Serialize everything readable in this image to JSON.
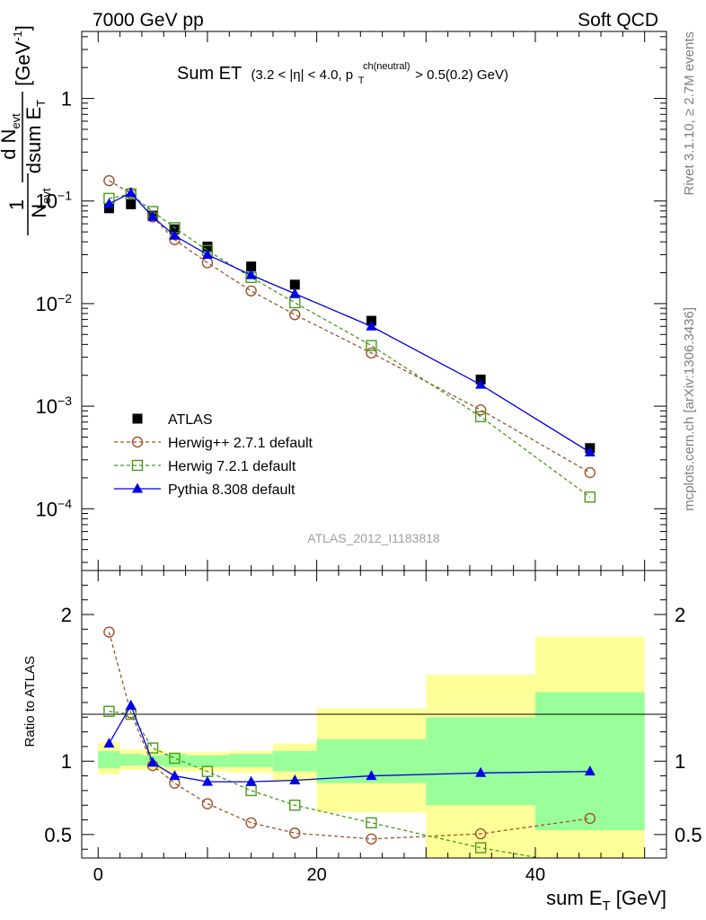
{
  "header": {
    "left": "7000 GeV pp",
    "right": "Soft QCD"
  },
  "side_text": {
    "top": "Rivet 3.1.10, ≥ 2.7M events",
    "bottom": "mcplots.cern.ch [arXiv:1306.3436]"
  },
  "watermark": "ATLAS_2012_I1183818",
  "chart_data": {
    "type": "line",
    "title_main": "Sum ET",
    "title_detail_a": "(3.2 < |η| < 4.0, p",
    "title_sup": "ch(neutral)",
    "title_sub": "T",
    "title_detail_b": " > 0.5(0.2) GeV)",
    "ylabel_main": {
      "frac_one": "1",
      "frac_n": "N",
      "frac_n_sub": "evt",
      "d": "d N",
      "d_sub": "evt",
      "dsum": "dsum E",
      "dsum_sub": "T",
      "unit": "[GeV",
      "unit_sup": "-1",
      "unit_close": "]"
    },
    "ylabel_ratio": "Ratio to ATLAS",
    "xlabel": {
      "text": "sum E",
      "sub": "T",
      "unit": " [GeV]"
    },
    "xlim": [
      -1.5,
      52
    ],
    "ylim_main": [
      2.5e-05,
      4.5
    ],
    "ylim_ratio": [
      0.34,
      2.3
    ],
    "y_scale_main": "log",
    "main_yticks": [
      {
        "v": 1,
        "base": "1",
        "exp": ""
      },
      {
        "v": 0.1,
        "base": "10",
        "exp": "−1"
      },
      {
        "v": 0.01,
        "base": "10",
        "exp": "−2"
      },
      {
        "v": 0.001,
        "base": "10",
        "exp": "−3"
      },
      {
        "v": 0.0001,
        "base": "10",
        "exp": "−4"
      }
    ],
    "ratio_yticks": [
      {
        "v": 0.5,
        "label": "0.5"
      },
      {
        "v": 1,
        "label": "1"
      },
      {
        "v": 2,
        "label": "2"
      }
    ],
    "xticks": [
      {
        "v": 0,
        "label": "0"
      },
      {
        "v": 20,
        "label": "20"
      },
      {
        "v": 40,
        "label": "40"
      }
    ],
    "x": [
      1,
      3,
      5,
      7,
      10,
      14,
      18,
      25,
      35,
      45
    ],
    "bins": [
      [
        0,
        2
      ],
      [
        2,
        4
      ],
      [
        4,
        6
      ],
      [
        6,
        8
      ],
      [
        8,
        12
      ],
      [
        12,
        16
      ],
      [
        16,
        20
      ],
      [
        20,
        30
      ],
      [
        30,
        40
      ],
      [
        40,
        50
      ]
    ],
    "bands": {
      "green_lo": [
        0.95,
        0.97,
        0.97,
        0.96,
        0.96,
        0.96,
        0.93,
        0.85,
        0.7,
        0.53
      ],
      "green_hi": [
        1.07,
        1.05,
        1.04,
        1.05,
        1.04,
        1.05,
        1.07,
        1.15,
        1.3,
        1.47
      ],
      "yellow_lo": [
        0.91,
        0.94,
        0.94,
        0.93,
        0.93,
        0.92,
        0.86,
        0.65,
        0.34,
        0.34
      ],
      "yellow_hi": [
        1.13,
        1.08,
        1.08,
        1.06,
        1.06,
        1.07,
        1.12,
        1.36,
        1.59,
        1.85
      ]
    },
    "legend_position": "lower-left",
    "series": [
      {
        "name": "ATLAS",
        "marker": "filled-square",
        "color": "#000000",
        "values": [
          0.085,
          0.093,
          0.072,
          0.053,
          0.036,
          0.023,
          0.0153,
          0.0068,
          0.00182,
          0.00039
        ]
      },
      {
        "name": "Herwig++ 2.7.1 default",
        "marker": "open-circle",
        "color": "#a0522d",
        "dash": true,
        "values": [
          0.158,
          0.119,
          0.07,
          0.042,
          0.025,
          0.0133,
          0.0078,
          0.0033,
          0.00092,
          0.000225
        ],
        "ratio": [
          1.88,
          1.33,
          0.97,
          0.85,
          0.71,
          0.58,
          0.51,
          0.47,
          0.505,
          0.61
        ]
      },
      {
        "name": "Herwig 7.2.1 default",
        "marker": "open-square",
        "color": "#4a9a1a",
        "dash": true,
        "values": [
          0.106,
          0.117,
          0.079,
          0.055,
          0.033,
          0.018,
          0.0102,
          0.0039,
          0.00079,
          0.00013
        ],
        "ratio": [
          1.34,
          1.32,
          1.09,
          1.02,
          0.93,
          0.8,
          0.7,
          0.58,
          0.41,
          0.28
        ]
      },
      {
        "name": "Pythia 8.308 default",
        "marker": "filled-triangle",
        "color": "#0000e6",
        "dash": false,
        "values": [
          0.094,
          0.12,
          0.07,
          0.046,
          0.03,
          0.019,
          0.0125,
          0.006,
          0.00162,
          0.000355
        ],
        "ratio": [
          1.12,
          1.38,
          0.99,
          0.9,
          0.86,
          0.86,
          0.87,
          0.9,
          0.92,
          0.93
        ]
      }
    ]
  }
}
